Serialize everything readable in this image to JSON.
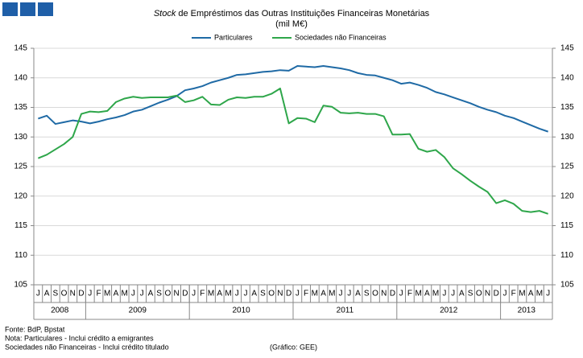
{
  "chart_data": {
    "type": "line",
    "title_italic": "Stock",
    "title": " de Empréstimos das Outras Instituições Financeiras Monetárias",
    "subtitle": "(mil M€)",
    "categories": [
      "J",
      "A",
      "S",
      "O",
      "N",
      "D",
      "J",
      "F",
      "M",
      "A",
      "M",
      "J",
      "J",
      "A",
      "S",
      "O",
      "N",
      "D",
      "J",
      "F",
      "M",
      "A",
      "M",
      "J",
      "J",
      "A",
      "S",
      "O",
      "N",
      "D",
      "J",
      "F",
      "M",
      "A",
      "M",
      "J",
      "J",
      "A",
      "S",
      "O",
      "N",
      "D",
      "J",
      "F",
      "M",
      "A",
      "M",
      "J",
      "J",
      "A",
      "S",
      "O",
      "N",
      "D",
      "J",
      "F",
      "M",
      "A",
      "M",
      "J"
    ],
    "years": [
      "2008",
      "2009",
      "2010",
      "2011",
      "2012",
      "2013"
    ],
    "series": [
      {
        "name": "Particulares",
        "color": "#1f6aa5",
        "values": [
          133.1,
          133.6,
          132.2,
          132.5,
          132.8,
          132.6,
          132.3,
          132.6,
          133.0,
          133.3,
          133.7,
          134.3,
          134.6,
          135.2,
          135.8,
          136.3,
          136.9,
          137.9,
          138.2,
          138.6,
          139.2,
          139.6,
          140.0,
          140.5,
          140.6,
          140.8,
          141.0,
          141.1,
          141.3,
          141.2,
          142.0,
          141.9,
          141.8,
          142.0,
          141.8,
          141.6,
          141.3,
          140.8,
          140.5,
          140.4,
          140.0,
          139.6,
          139.0,
          139.2,
          138.8,
          138.3,
          137.6,
          137.2,
          136.7,
          136.2,
          135.7,
          135.1,
          134.6,
          134.2,
          133.6,
          133.2,
          132.6,
          132.0,
          131.4,
          130.9
        ]
      },
      {
        "name": "Sociedades não Financeiras",
        "color": "#2ea64a",
        "values": [
          126.4,
          127.0,
          127.9,
          128.8,
          130.0,
          133.9,
          134.3,
          134.2,
          134.4,
          135.9,
          136.5,
          136.8,
          136.6,
          136.7,
          136.7,
          136.7,
          137.0,
          135.9,
          136.2,
          136.8,
          135.5,
          135.4,
          136.3,
          136.7,
          136.6,
          136.8,
          136.8,
          137.3,
          138.2,
          132.3,
          133.2,
          133.1,
          132.5,
          135.3,
          135.1,
          134.1,
          134.0,
          134.1,
          133.9,
          133.9,
          133.5,
          130.4,
          130.4,
          130.5,
          128.0,
          127.5,
          127.8,
          126.6,
          124.7,
          123.7,
          122.6,
          121.6,
          120.7,
          118.8,
          119.3,
          118.7,
          117.5,
          117.3,
          117.5,
          117.0
        ]
      }
    ],
    "ylim": [
      105,
      145
    ],
    "yticks": [
      105,
      110,
      115,
      120,
      125,
      130,
      135,
      140,
      145
    ],
    "y2lim": [
      105,
      145
    ],
    "y2ticks": [
      105,
      110,
      115,
      120,
      125,
      130,
      135,
      140,
      145
    ],
    "grid": true,
    "legend": "top",
    "notes": [
      "Fonte: BdP, Bpstat",
      "Nota: Particulares - Inclui crédito a emigrantes",
      "Sociedades não Financeiras - Inclui crédito titulado"
    ],
    "credit": "(Gráfico: GEE)"
  }
}
